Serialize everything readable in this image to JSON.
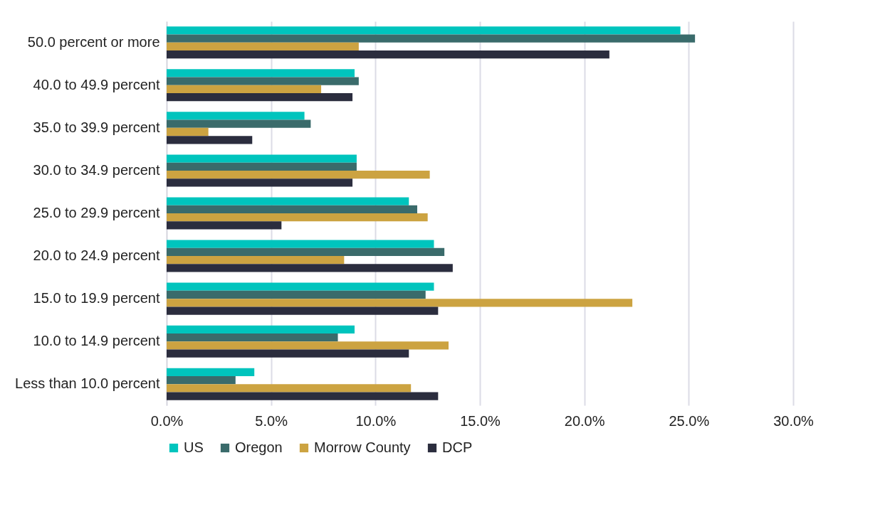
{
  "chart_data": {
    "type": "bar",
    "orientation": "horizontal",
    "categories": [
      "50.0 percent or more",
      "40.0 to 49.9 percent",
      "35.0 to 39.9 percent",
      "30.0 to 34.9 percent",
      "25.0 to 29.9 percent",
      "20.0 to 24.9 percent",
      "15.0 to 19.9 percent",
      "10.0 to 14.9 percent",
      "Less than 10.0 percent"
    ],
    "series": [
      {
        "name": "US",
        "color": "#00c4bd",
        "values": [
          24.6,
          9.0,
          6.6,
          9.1,
          11.6,
          12.8,
          12.8,
          9.0,
          4.2
        ]
      },
      {
        "name": "Oregon",
        "color": "#3a6b6b",
        "values": [
          25.3,
          9.2,
          6.9,
          9.1,
          12.0,
          13.3,
          12.4,
          8.2,
          3.3
        ]
      },
      {
        "name": "Morrow County",
        "color": "#cca341",
        "values": [
          9.2,
          7.4,
          2.0,
          12.6,
          12.5,
          8.5,
          22.3,
          13.5,
          11.7
        ]
      },
      {
        "name": "DCP",
        "color": "#2b2d3e",
        "values": [
          21.2,
          8.9,
          4.1,
          8.9,
          5.5,
          13.7,
          13.0,
          11.6,
          13.0
        ]
      }
    ],
    "xlim": [
      0,
      30
    ],
    "xticks": [
      {
        "value": 0,
        "label": "0.0%"
      },
      {
        "value": 5,
        "label": "5.0%"
      },
      {
        "value": 10,
        "label": "10.0%"
      },
      {
        "value": 15,
        "label": "15.0%"
      },
      {
        "value": 20,
        "label": "20.0%"
      },
      {
        "value": 25,
        "label": "25.0%"
      },
      {
        "value": 30,
        "label": "30.0%"
      }
    ],
    "grid": "x",
    "legend": "bottom"
  }
}
